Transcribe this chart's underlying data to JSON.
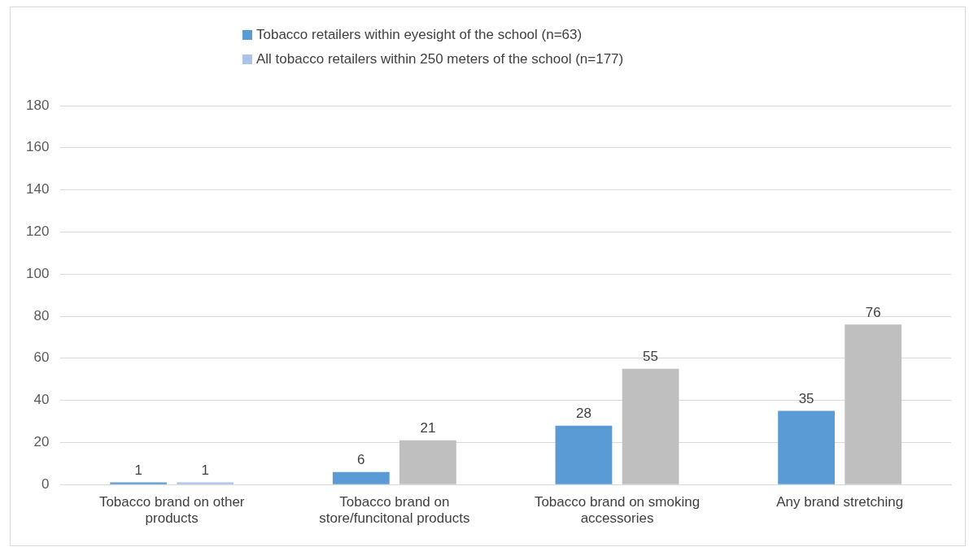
{
  "chart_data": {
    "type": "bar",
    "categories": [
      "Tobacco brand on other products",
      "Tobacco brand on store/funcitonal products",
      "Tobacco brand on smoking accessories",
      "Any brand stretching"
    ],
    "series": [
      {
        "name": "Tobacco retailers within eyesight of the school (n=63)",
        "color": "#5b9bd5",
        "values": [
          1,
          6,
          28,
          35
        ]
      },
      {
        "name": "All tobacco retailers within 250 meters of the school (n=177)",
        "color": "#a9c4e8",
        "colors": [
          "#a9c4e8",
          "#bfbfbf",
          "#bfbfbf",
          "#bfbfbf"
        ],
        "values": [
          1,
          21,
          55,
          76
        ]
      }
    ],
    "ylim": [
      0,
      180
    ],
    "yticks": [
      0,
      20,
      40,
      60,
      80,
      100,
      120,
      140,
      160,
      180
    ],
    "grid": "y",
    "legend": "top",
    "data_labels": true
  }
}
